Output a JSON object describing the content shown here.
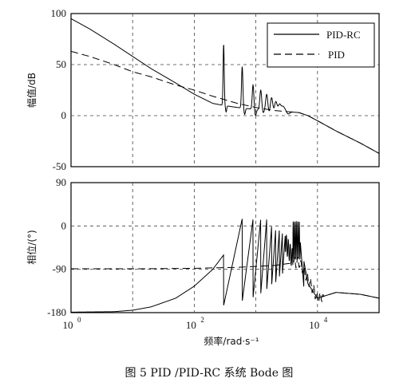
{
  "caption": "图 5   PID /PID-RC 系统 Bode 图",
  "chart_data": [
    {
      "type": "line",
      "panel": "magnitude",
      "ylabel": "幅值/dB",
      "xscale": "log",
      "xlim": [
        1,
        100000
      ],
      "ylim": [
        -50,
        100
      ],
      "yticks": [
        "100",
        "50",
        "0",
        "-50"
      ],
      "grid": true,
      "legend": {
        "position": "top-right",
        "entries": [
          {
            "name": "PID-RC",
            "style": "solid"
          },
          {
            "name": "PID",
            "style": "dashed"
          }
        ]
      },
      "series": [
        {
          "name": "PID-RC",
          "style": "solid",
          "x": [
            1,
            2,
            5,
            10,
            20,
            50,
            100,
            200,
            300,
            500,
            700,
            1000,
            2000,
            3000,
            5000,
            7000,
            10000,
            20000,
            50000,
            100000
          ],
          "y": [
            95,
            85,
            70,
            58,
            46,
            32,
            21,
            12,
            10,
            8,
            7,
            6,
            5,
            4,
            3,
            0,
            -5,
            -15,
            -27,
            -37
          ]
        },
        {
          "name": "PID",
          "style": "dashed",
          "x": [
            1,
            2,
            5,
            10,
            20,
            50,
            100,
            200,
            500,
            1000,
            2000,
            5000,
            7000,
            10000,
            20000,
            50000,
            100000
          ],
          "y": [
            63,
            58,
            50,
            43,
            38,
            30,
            25,
            19,
            12,
            8,
            5,
            3,
            0,
            -5,
            -15,
            -27,
            -37
          ]
        }
      ],
      "resonance_peaks_rad_s": [
        300,
        600,
        900,
        1200,
        1500,
        1800,
        2100,
        2400,
        2700,
        3000
      ],
      "resonance_peak_heights_db": [
        70,
        48,
        30,
        25,
        21,
        18,
        15,
        13,
        11,
        9
      ]
    },
    {
      "type": "line",
      "panel": "phase",
      "ylabel": "相位/(°)",
      "xlabel": "频率/rad·s⁻¹",
      "xscale": "log",
      "xlim": [
        1,
        100000
      ],
      "ylim": [
        -180,
        90
      ],
      "yticks": [
        "90",
        "0",
        "-90",
        "-180"
      ],
      "xticks": [
        "10",
        "10",
        "10"
      ],
      "xtick_exponents": [
        "0",
        "2",
        "4"
      ],
      "grid": true,
      "series": [
        {
          "name": "PID-RC",
          "style": "solid",
          "x": [
            1,
            5,
            10,
            20,
            50,
            100,
            200,
            300,
            500,
            1000,
            2000,
            3000,
            5000,
            7000,
            10000,
            20000,
            50000,
            100000
          ],
          "y": [
            -179,
            -178,
            -175,
            -168,
            -150,
            -125,
            -90,
            -60,
            -40,
            -30,
            -20,
            -10,
            -15,
            -120,
            -150,
            -138,
            -142,
            -150
          ]
        },
        {
          "name": "PID",
          "style": "dashed",
          "x": [
            1,
            10,
            100,
            200,
            500,
            1000,
            2000,
            5000,
            7000,
            10000,
            20000,
            50000,
            100000
          ],
          "y": [
            -89,
            -89,
            -88,
            -87,
            -86,
            -84,
            -82,
            -75,
            -110,
            -150,
            -138,
            -142,
            -150
          ]
        }
      ]
    }
  ]
}
